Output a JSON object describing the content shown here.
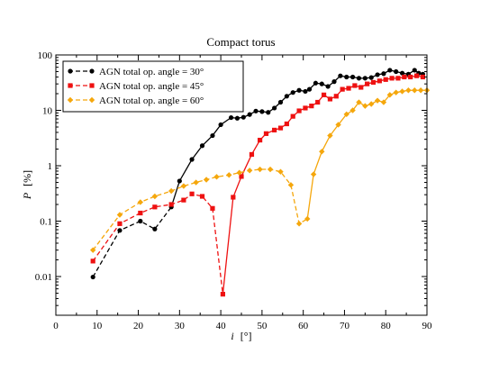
{
  "chart_data": {
    "type": "line",
    "title": "Compact torus",
    "xlabel_var": "i",
    "xlabel_unit": "[°]",
    "ylabel_var": "P",
    "ylabel_unit": "[%]",
    "xlim": [
      0,
      90
    ],
    "ylim": [
      0.002,
      100
    ],
    "yscale": "log",
    "grid": false,
    "legend_position": "top-left",
    "x_ticks": [
      0,
      10,
      20,
      30,
      40,
      50,
      60,
      70,
      80,
      90
    ],
    "x_tick_labels": [
      "0",
      "10",
      "20",
      "30",
      "40",
      "50",
      "60",
      "70",
      "80",
      "90"
    ],
    "y_ticks": [
      0.01,
      0.1,
      1,
      10,
      100
    ],
    "y_tick_labels": [
      "0.01",
      "0.1",
      "1",
      "10",
      "100"
    ],
    "series": [
      {
        "name": "AGN total op. angle = 30°",
        "color": "#000000",
        "marker": "circle",
        "dashed_until_x": 28,
        "x": [
          9,
          15.5,
          20.5,
          24,
          28,
          30,
          33,
          35.5,
          38,
          40,
          42.5,
          44,
          45.5,
          47,
          48.5,
          50,
          51.5,
          53,
          54.5,
          56,
          57.5,
          59,
          60.5,
          61.5,
          63,
          64.5,
          66,
          67.5,
          69,
          70.5,
          72,
          73.5,
          75,
          76.5,
          78,
          79.5,
          81,
          82.5,
          84,
          85.5,
          87,
          88,
          89
        ],
        "y": [
          0.0098,
          0.068,
          0.1,
          0.072,
          0.18,
          0.53,
          1.3,
          2.3,
          3.5,
          5.5,
          7.4,
          7.2,
          7.5,
          8.4,
          9.7,
          9.5,
          9.2,
          11,
          14,
          18,
          21,
          23,
          22,
          24,
          31,
          30,
          27,
          33,
          42,
          40,
          40,
          38,
          38,
          39,
          44,
          46,
          53,
          50,
          47,
          45,
          53,
          47,
          45
        ]
      },
      {
        "name": "AGN total op. angle = 45°",
        "color": "#ee1111",
        "marker": "square",
        "dashed_until_x": 40.5,
        "x": [
          9,
          15.5,
          20.5,
          24,
          28,
          31,
          33,
          35.5,
          38,
          40.5,
          43,
          45,
          47.5,
          49.5,
          51,
          53,
          54.5,
          56,
          57.5,
          59,
          60.5,
          62,
          63.5,
          65,
          66.5,
          68,
          69.5,
          71,
          72.5,
          74,
          75.5,
          77,
          78.5,
          80,
          81.5,
          83,
          84.5,
          86,
          87.5,
          89
        ],
        "y": [
          0.019,
          0.09,
          0.14,
          0.18,
          0.2,
          0.24,
          0.31,
          0.28,
          0.17,
          0.0048,
          0.27,
          0.64,
          1.6,
          2.9,
          3.8,
          4.4,
          4.8,
          5.7,
          7.8,
          9.8,
          11,
          12,
          14,
          19,
          16,
          18,
          24,
          25,
          28,
          26,
          30,
          32,
          34,
          36,
          38,
          38,
          40,
          40,
          42,
          40
        ]
      },
      {
        "name": "AGN total op. angle = 60°",
        "color": "#f5a70c",
        "marker": "diamond",
        "dashed_until_x": 61,
        "x": [
          9,
          15.5,
          20.5,
          24,
          28,
          31,
          34,
          36.5,
          39,
          42,
          44.5,
          47,
          49.5,
          52,
          54.5,
          57,
          59,
          61,
          62.5,
          64.5,
          66.5,
          68.5,
          70.5,
          72,
          73.5,
          75,
          76.5,
          78,
          79.5,
          81,
          82.5,
          84,
          85.5,
          87,
          88.5,
          90
        ],
        "y": [
          0.03,
          0.13,
          0.22,
          0.28,
          0.35,
          0.43,
          0.5,
          0.56,
          0.63,
          0.68,
          0.75,
          0.82,
          0.86,
          0.86,
          0.78,
          0.45,
          0.09,
          0.11,
          0.7,
          1.8,
          3.5,
          5.5,
          8.5,
          10,
          14,
          12,
          13,
          15,
          14,
          19,
          21,
          22,
          23,
          23,
          23,
          23
        ]
      }
    ]
  }
}
